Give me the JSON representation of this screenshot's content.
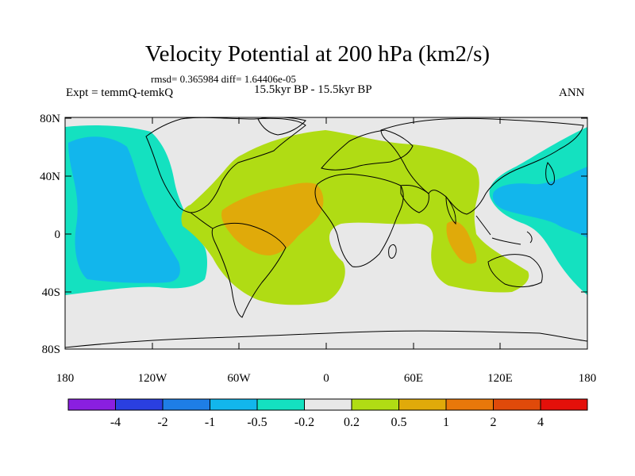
{
  "title": "Velocity Potential at 200 hPa (km2/s)",
  "stats_line": "rmsd= 0.365984 diff= 1.64406e-05",
  "experiment": "Expt = temmQ-temkQ",
  "period": "15.5kyr BP - 15.5kyr BP",
  "season": "ANN",
  "lat_labels": [
    "80N",
    "40N",
    "0",
    "40S",
    "80S"
  ],
  "lon_labels": [
    "180",
    "120W",
    "60W",
    "0",
    "60E",
    "120E",
    "180"
  ],
  "colorbar": {
    "labels": [
      "-4",
      "-2",
      "-1",
      "-0.5",
      "-0.2",
      "0.2",
      "0.5",
      "1",
      "2",
      "4"
    ],
    "colors": [
      "#8a1fe0",
      "#2a3fe0",
      "#1e7ee6",
      "#12b6ec",
      "#14e1c0",
      "#e8e8e8",
      "#b0dc14",
      "#e0aa0a",
      "#e9780a",
      "#e04a0a",
      "#e4100a"
    ]
  },
  "field_colors": {
    "strong_negative": "#12b6ec",
    "weak_negative": "#14e1c0",
    "neutral": "#e8e8e8",
    "weak_positive": "#b0dc14",
    "positive": "#e0aa0a"
  }
}
